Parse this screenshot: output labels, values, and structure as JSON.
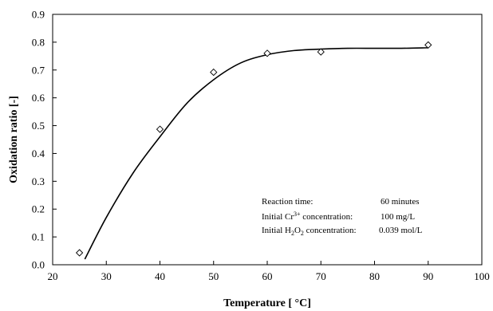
{
  "chart_data": {
    "type": "scatter",
    "xlabel_text": "Temperature [ °C]",
    "ylabel": "Oxidation ratio [-]",
    "xlim": [
      20,
      100
    ],
    "ylim": [
      0.0,
      0.9
    ],
    "x_ticks": [
      "20",
      "30",
      "40",
      "50",
      "60",
      "70",
      "80",
      "90",
      "100"
    ],
    "y_ticks": [
      "0.0",
      "0.1",
      "0.2",
      "0.3",
      "0.4",
      "0.5",
      "0.6",
      "0.7",
      "0.8",
      "0.9"
    ],
    "grid": false,
    "series": [
      {
        "marker": "diamond",
        "x": [
          25,
          40,
          50,
          60,
          70,
          90
        ],
        "y": [
          0.043,
          0.487,
          0.692,
          0.76,
          0.765,
          0.79
        ]
      }
    ],
    "fitted_curve": {
      "x": [
        26,
        30,
        35,
        40,
        45,
        50,
        55,
        60,
        65,
        70,
        75,
        80,
        85,
        90
      ],
      "y": [
        0.02,
        0.17,
        0.33,
        0.46,
        0.58,
        0.665,
        0.725,
        0.755,
        0.77,
        0.775,
        0.778,
        0.778,
        0.778,
        0.78
      ]
    },
    "annotations": {
      "reaction_label": "Reaction time:",
      "reaction_value": "60 minutes",
      "cr_label_a": "Initial Cr",
      "cr_sup": "3+",
      "cr_label_b": " concentration:",
      "cr_value": "100 mg/L",
      "h2o2_label_a": "Initial H",
      "h2o2_sub1": "2",
      "h2o2_label_b": "O",
      "h2o2_sub2": "2",
      "h2o2_label_c": " concentration:",
      "h2o2_value": "0.039 mol/L"
    }
  }
}
